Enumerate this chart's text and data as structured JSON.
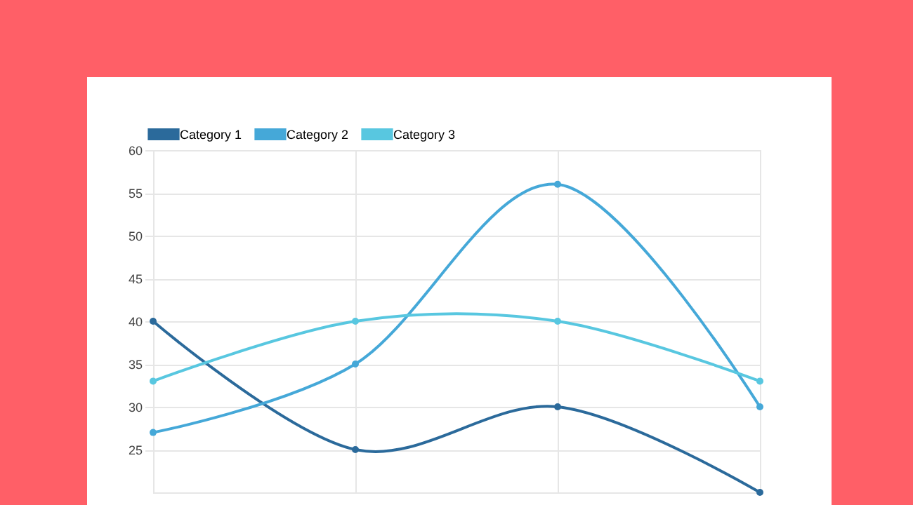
{
  "chart_data": {
    "type": "line",
    "categories": [
      null,
      null,
      null,
      null
    ],
    "series": [
      {
        "name": "Category 1",
        "color": "#2b6a9b",
        "values": [
          40,
          25,
          30,
          20
        ]
      },
      {
        "name": "Category 2",
        "color": "#45a8d8",
        "values": [
          27,
          35,
          56,
          30
        ]
      },
      {
        "name": "Category 3",
        "color": "#58c7e0",
        "values": [
          33,
          40,
          40,
          33
        ]
      }
    ],
    "ylim": [
      20,
      60
    ],
    "yticks": [
      25,
      30,
      35,
      40,
      45,
      50,
      55,
      60
    ],
    "grid": true,
    "legend": "top",
    "marker": "circle",
    "line_style": "solid",
    "tick_labels": "y"
  }
}
